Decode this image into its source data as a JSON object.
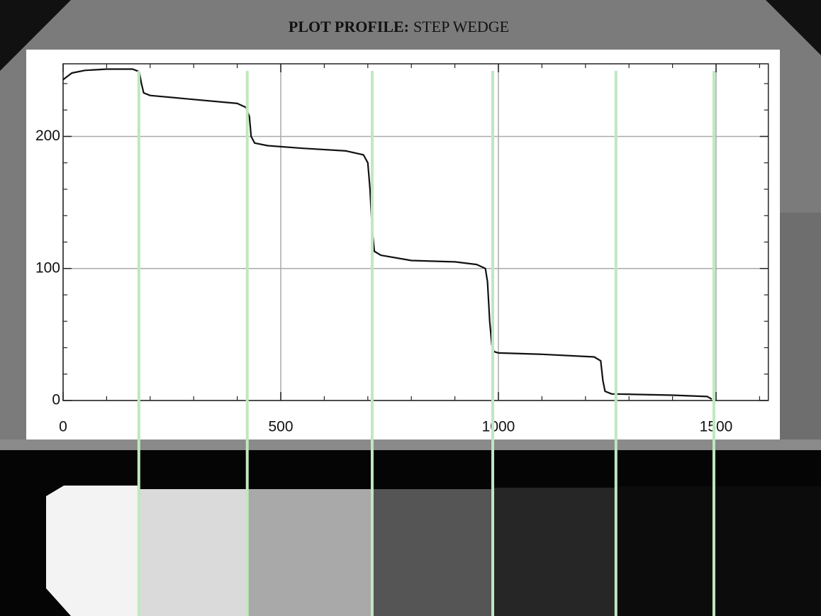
{
  "chart_data": {
    "type": "line",
    "title": "PLOT PROFILE:",
    "subtitle": "STEP WEDGE",
    "x": [
      0,
      20,
      50,
      100,
      160,
      175,
      180,
      185,
      200,
      300,
      400,
      420,
      428,
      432,
      440,
      470,
      550,
      650,
      690,
      700,
      705,
      710,
      715,
      730,
      800,
      900,
      950,
      970,
      975,
      980,
      985,
      990,
      1000,
      1100,
      1220,
      1235,
      1240,
      1245,
      1260,
      1400,
      1480,
      1490
    ],
    "values": [
      243,
      248,
      250,
      251,
      251,
      249,
      240,
      233,
      231,
      228,
      225,
      222,
      215,
      200,
      195,
      193,
      191,
      189,
      186,
      180,
      160,
      130,
      113,
      110,
      106,
      105,
      103,
      100,
      90,
      60,
      42,
      37,
      36,
      35,
      33,
      30,
      15,
      7,
      5,
      4,
      3,
      1
    ],
    "color": "#111111",
    "xlim": [
      0,
      1620
    ],
    "ylim": [
      0,
      255
    ],
    "xticks": [
      0,
      500,
      1000,
      1500
    ],
    "yticks": [
      0,
      100,
      200
    ],
    "xminorticks": [
      100,
      200,
      300,
      400,
      600,
      700,
      800,
      900,
      1100,
      1200,
      1300,
      1400,
      1600
    ],
    "yminorticks": [
      20,
      40,
      60,
      80,
      120,
      140,
      160,
      180,
      220,
      240
    ],
    "grid": true,
    "vlines": [
      174,
      423,
      710,
      987,
      1270,
      1495
    ],
    "vline_color": "#bfe8bf"
  }
}
